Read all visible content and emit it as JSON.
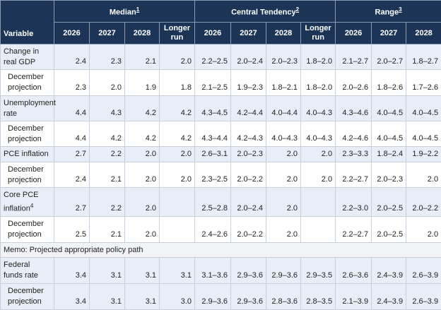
{
  "header": {
    "variable": "Variable",
    "groups": [
      {
        "label": "Median",
        "note": "1",
        "columns": [
          "2026",
          "2027",
          "2028",
          "Longer run"
        ]
      },
      {
        "label": "Central Tendency",
        "note": "2",
        "columns": [
          "2026",
          "2027",
          "2028",
          "Longer run"
        ]
      },
      {
        "label": "Range",
        "note": "3",
        "columns": [
          "2026",
          "2027",
          "2028"
        ]
      }
    ]
  },
  "rows": [
    {
      "label": "Change in real GDP",
      "values": [
        "2.4",
        "2.3",
        "2.1",
        "2.0",
        "2.2–2.5",
        "2.0–2.4",
        "2.0–2.3",
        "1.8–2.0",
        "2.1–2.7",
        "2.0–2.7",
        "1.8–2.7"
      ],
      "december": {
        "label": "December projection",
        "values": [
          "2.3",
          "2.0",
          "1.9",
          "1.8",
          "2.1–2.5",
          "1.9–2.3",
          "1.8–2.1",
          "1.8–2.0",
          "2.0–2.6",
          "1.8–2.6",
          "1.7–2.6"
        ]
      }
    },
    {
      "label": "Unemployment rate",
      "values": [
        "4.4",
        "4.3",
        "4.2",
        "4.2",
        "4.3–4.5",
        "4.2–4.4",
        "4.0–4.4",
        "4.0–4.3",
        "4.3–4.6",
        "4.0–4.5",
        "4.0–4.5"
      ],
      "december": {
        "label": "December projection",
        "values": [
          "4.4",
          "4.2",
          "4.2",
          "4.2",
          "4.3–4.4",
          "4.2–4.3",
          "4.0–4.3",
          "4.0–4.3",
          "4.2–4.6",
          "4.0–4.5",
          "4.0–4.5"
        ]
      }
    },
    {
      "label": "PCE inflation",
      "values": [
        "2.7",
        "2.2",
        "2.0",
        "2.0",
        "2.6–3.1",
        "2.0–2.3",
        "2.0",
        "2.0",
        "2.3–3.3",
        "1.8–2.4",
        "1.9–2.2"
      ],
      "december": {
        "label": "December projection",
        "values": [
          "2.4",
          "2.1",
          "2.0",
          "2.0",
          "2.3–2.5",
          "2.0–2.2",
          "2.0",
          "2.0",
          "2.2–2.7",
          "2.0–2.3",
          "2.0"
        ]
      }
    },
    {
      "label": "Core PCE inflation",
      "note": "4",
      "values": [
        "2.7",
        "2.2",
        "2.0",
        null,
        "2.5–2.8",
        "2.0–2.4",
        "2.0",
        null,
        "2.2–3.0",
        "2.0–2.5",
        "2.0–2.2"
      ],
      "december": {
        "label": "December projection",
        "values": [
          "2.5",
          "2.1",
          "2.0",
          null,
          "2.4–2.6",
          "2.0–2.2",
          "2.0",
          null,
          "2.2–2.7",
          "2.0–2.5",
          "2.0"
        ]
      }
    }
  ],
  "memo": "Memo: Projected appropriate policy path",
  "memo_rows": [
    {
      "label": "Federal funds rate",
      "values": [
        "3.4",
        "3.1",
        "3.1",
        "3.1",
        "3.1–3.6",
        "2.9–3.6",
        "2.9–3.6",
        "2.9–3.5",
        "2.6–3.6",
        "2.4–3.9",
        "2.6–3.9"
      ],
      "december": {
        "label": "December projection",
        "values": [
          "3.4",
          "3.1",
          "3.1",
          "3.0",
          "2.9–3.6",
          "2.9–3.6",
          "2.8–3.6",
          "2.8–3.5",
          "2.1–3.9",
          "2.4–3.9",
          "2.6–3.9"
        ]
      }
    }
  ]
}
